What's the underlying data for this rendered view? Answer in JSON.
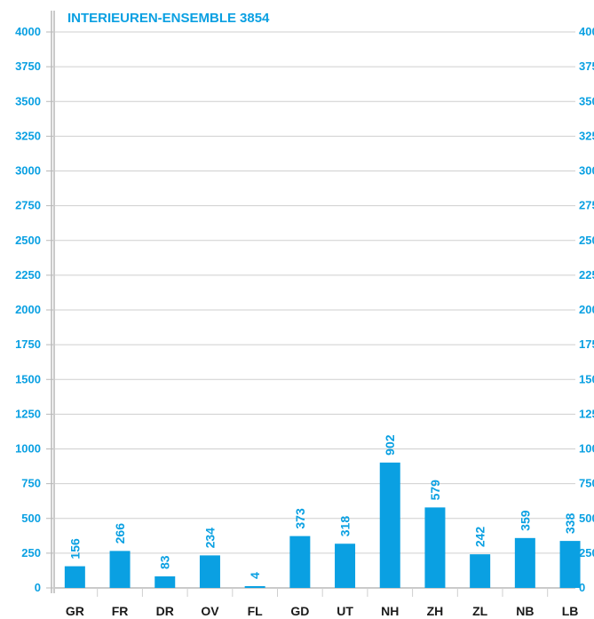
{
  "chart_data": {
    "type": "bar",
    "title": "INTERIEUREN-ENSEMBLE",
    "title_value": "3854",
    "categories": [
      "GR",
      "FR",
      "DR",
      "OV",
      "FL",
      "GD",
      "UT",
      "NH",
      "ZH",
      "ZL",
      "NB",
      "LB"
    ],
    "values": [
      156,
      266,
      83,
      234,
      4,
      373,
      318,
      902,
      579,
      242,
      359,
      338
    ],
    "ylim": [
      0,
      4000
    ],
    "yticks": [
      "0",
      "250",
      "500",
      "750",
      "1000",
      "1250",
      "1500",
      "1750",
      "2000",
      "2250",
      "2500",
      "2750",
      "3000",
      "3250",
      "3500",
      "3750",
      "4000"
    ],
    "grid": true,
    "legend": "none",
    "colors": {
      "bar": "#0aa0e2",
      "text": "#0aa0e2",
      "grid": "#cfcfcf",
      "axis": "#b8b8b8"
    }
  }
}
